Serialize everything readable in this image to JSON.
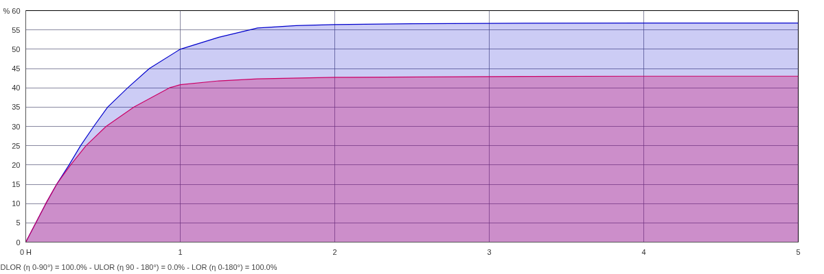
{
  "chart_data": {
    "type": "area",
    "series": [
      {
        "color": "#0000cc",
        "x": [
          0,
          0.13,
          0.2,
          0.28,
          0.355,
          0.44,
          0.53,
          0.66,
          0.8,
          1.0,
          1.25,
          1.5,
          1.75,
          2,
          2.5,
          3,
          4,
          5
        ],
        "values": [
          0,
          10,
          15,
          20,
          25,
          30,
          35,
          40,
          45,
          50,
          53.1,
          55.5,
          56.1,
          56.4,
          56.6,
          56.7,
          56.8,
          56.8
        ]
      },
      {
        "color": "#cc0066",
        "x": [
          0,
          0.13,
          0.2,
          0.29,
          0.39,
          0.52,
          0.7,
          0.93,
          1.0,
          1.25,
          1.5,
          2,
          3,
          4,
          5
        ],
        "values": [
          0,
          10,
          15,
          20,
          25,
          30,
          35,
          40,
          40.8,
          41.8,
          42.3,
          42.7,
          42.9,
          43,
          43
        ]
      }
    ],
    "xlim": [
      0,
      5
    ],
    "xticks": [
      {
        "value": 0,
        "label": "0 H"
      },
      1,
      2,
      3,
      4,
      5
    ],
    "ylim": [
      0,
      60
    ],
    "yticks": [
      0,
      5,
      10,
      15,
      20,
      25,
      30,
      35,
      40,
      45,
      50,
      55,
      {
        "value": 60,
        "label": "% 60"
      }
    ],
    "grid": true,
    "annotations": [
      "DLOR (η 0-90°) = 100.0%  -  ULOR (η 90 - 180°) = 0.0%  -  LOR (η 0-180°) = 100.0%"
    ]
  }
}
